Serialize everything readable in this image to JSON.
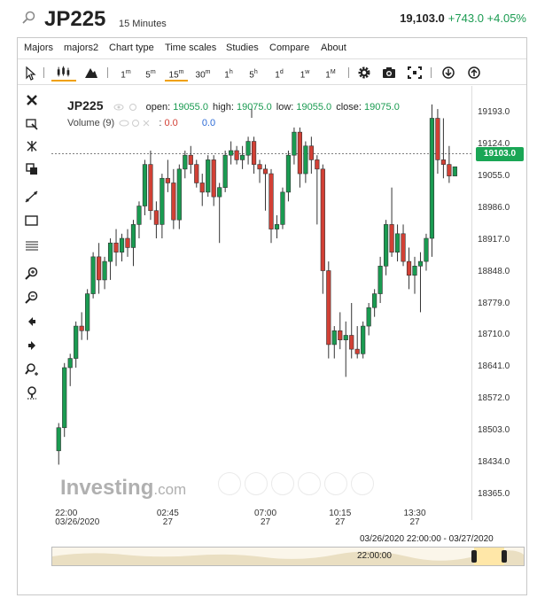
{
  "header": {
    "symbol": "JP225",
    "timeframe": "15 Minutes",
    "last": "19,103.0",
    "change": "+743.0 +4.05%"
  },
  "menu": [
    "Majors",
    "majors2",
    "Chart type",
    "Time scales",
    "Studies",
    "Compare",
    "About"
  ],
  "toolbar": {
    "intervals": [
      {
        "num": "1",
        "unit": "m"
      },
      {
        "num": "5",
        "unit": "m"
      },
      {
        "num": "15",
        "unit": "m"
      },
      {
        "num": "30",
        "unit": "m"
      },
      {
        "num": "1",
        "unit": "h"
      },
      {
        "num": "5",
        "unit": "h"
      },
      {
        "num": "1",
        "unit": "d"
      },
      {
        "num": "1",
        "unit": "w"
      },
      {
        "num": "1",
        "unit": "M"
      }
    ],
    "active_interval": "15m",
    "icons": [
      "pointer-icon",
      "candlestick-icon",
      "mountain-icon",
      "gear-icon",
      "camera-icon",
      "fullscreen-icon",
      "download-icon",
      "upload-icon"
    ]
  },
  "legend": {
    "symbol": "JP225",
    "open_label": "open:",
    "open": "19055.0",
    "high_label": "high:",
    "high": "19075.0",
    "low_label": "low:",
    "low": "19055.0",
    "close_label": "close:",
    "close": "19075.0",
    "volume_label": "Volume (9)",
    "volume_a": "0.0",
    "volume_b": "0.0"
  },
  "current_price": "19103.0",
  "range_label": "03/26/2020 22:00:00 - 03/27/2020",
  "navigator_label": "22:00:00",
  "logo": {
    "main": "Investing",
    "suffix": ".com"
  },
  "colors": {
    "up": "#1a9b51",
    "down": "#d24035",
    "accent": "#f0a000"
  },
  "chart_data": {
    "type": "candlestick",
    "ylim": [
      18310,
      19250
    ],
    "y_ticks": [
      "19193.0",
      "19124.0",
      "19055.0",
      "18986.0",
      "18917.0",
      "18848.0",
      "18779.0",
      "18710.0",
      "18641.0",
      "18572.0",
      "18503.0",
      "18434.0",
      "18365.0"
    ],
    "x_ticks": [
      {
        "time": "22:00",
        "date": "03/26/2020",
        "index": 0
      },
      {
        "time": "02:45",
        "date": "27",
        "index": 19
      },
      {
        "time": "07:00",
        "date": "27",
        "index": 36
      },
      {
        "time": "10:15",
        "date": "27",
        "index": 49
      },
      {
        "time": "13:30",
        "date": "27",
        "index": 62
      }
    ],
    "candles": [
      [
        18460,
        18520,
        18430,
        18510
      ],
      [
        18510,
        18650,
        18490,
        18640
      ],
      [
        18640,
        18670,
        18600,
        18660
      ],
      [
        18660,
        18740,
        18640,
        18730
      ],
      [
        18730,
        18760,
        18700,
        18720
      ],
      [
        18720,
        18810,
        18700,
        18800
      ],
      [
        18800,
        18890,
        18790,
        18880
      ],
      [
        18880,
        18910,
        18800,
        18830
      ],
      [
        18830,
        18880,
        18810,
        18870
      ],
      [
        18870,
        18920,
        18830,
        18910
      ],
      [
        18910,
        18940,
        18860,
        18890
      ],
      [
        18890,
        18930,
        18870,
        18920
      ],
      [
        18920,
        18940,
        18880,
        18900
      ],
      [
        18900,
        18960,
        18860,
        18950
      ],
      [
        18950,
        19000,
        18920,
        18990
      ],
      [
        18990,
        19090,
        18970,
        19080
      ],
      [
        19080,
        19110,
        18960,
        18980
      ],
      [
        18980,
        19000,
        18920,
        18950
      ],
      [
        18950,
        19060,
        18920,
        19050
      ],
      [
        19050,
        19090,
        19020,
        19040
      ],
      [
        19040,
        19070,
        18940,
        18960
      ],
      [
        18960,
        19080,
        18940,
        19070
      ],
      [
        19070,
        19110,
        19050,
        19100
      ],
      [
        19100,
        19120,
        19060,
        19080
      ],
      [
        19080,
        19090,
        19030,
        19040
      ],
      [
        19040,
        19060,
        18990,
        19020
      ],
      [
        19020,
        19100,
        19010,
        19090
      ],
      [
        19090,
        19100,
        18990,
        19010
      ],
      [
        19010,
        19040,
        18910,
        19030
      ],
      [
        19030,
        19110,
        19020,
        19100
      ],
      [
        19100,
        19130,
        19080,
        19110
      ],
      [
        19110,
        19120,
        19080,
        19090
      ],
      [
        19090,
        19120,
        19070,
        19100
      ],
      [
        19100,
        19140,
        19080,
        19130
      ],
      [
        19130,
        19140,
        19060,
        19080
      ],
      [
        19080,
        19090,
        19040,
        19070
      ],
      [
        19070,
        19080,
        18980,
        19060
      ],
      [
        19060,
        19070,
        18910,
        18940
      ],
      [
        18940,
        18970,
        18920,
        18950
      ],
      [
        18950,
        19030,
        18940,
        19020
      ],
      [
        19020,
        19110,
        19000,
        19100
      ],
      [
        19100,
        19160,
        19080,
        19150
      ],
      [
        19150,
        19160,
        19030,
        19060
      ],
      [
        19060,
        19130,
        19040,
        19120
      ],
      [
        19120,
        19140,
        19060,
        19090
      ],
      [
        19090,
        19100,
        18950,
        19070
      ],
      [
        19070,
        19080,
        18800,
        18850
      ],
      [
        18850,
        18870,
        18660,
        18690
      ],
      [
        18690,
        18730,
        18660,
        18720
      ],
      [
        18720,
        18760,
        18680,
        18700
      ],
      [
        18700,
        18740,
        18620,
        18710
      ],
      [
        18710,
        18780,
        18660,
        18680
      ],
      [
        18680,
        18730,
        18660,
        18670
      ],
      [
        18670,
        18740,
        18660,
        18730
      ],
      [
        18730,
        18780,
        18710,
        18770
      ],
      [
        18770,
        18810,
        18750,
        18800
      ],
      [
        18800,
        18880,
        18780,
        18860
      ],
      [
        18860,
        18960,
        18840,
        18950
      ],
      [
        18950,
        19030,
        18880,
        18890
      ],
      [
        18890,
        18950,
        18870,
        18930
      ],
      [
        18930,
        18950,
        18860,
        18870
      ],
      [
        18870,
        18900,
        18810,
        18840
      ],
      [
        18840,
        18880,
        18800,
        18860
      ],
      [
        18860,
        18890,
        18760,
        18870
      ],
      [
        18870,
        18930,
        18850,
        18920
      ],
      [
        18920,
        19210,
        18880,
        19180
      ],
      [
        19180,
        19200,
        19060,
        19090
      ],
      [
        19090,
        19180,
        19050,
        19080
      ],
      [
        19080,
        19120,
        19040,
        19055
      ],
      [
        19055,
        19075,
        19055,
        19075
      ]
    ]
  }
}
